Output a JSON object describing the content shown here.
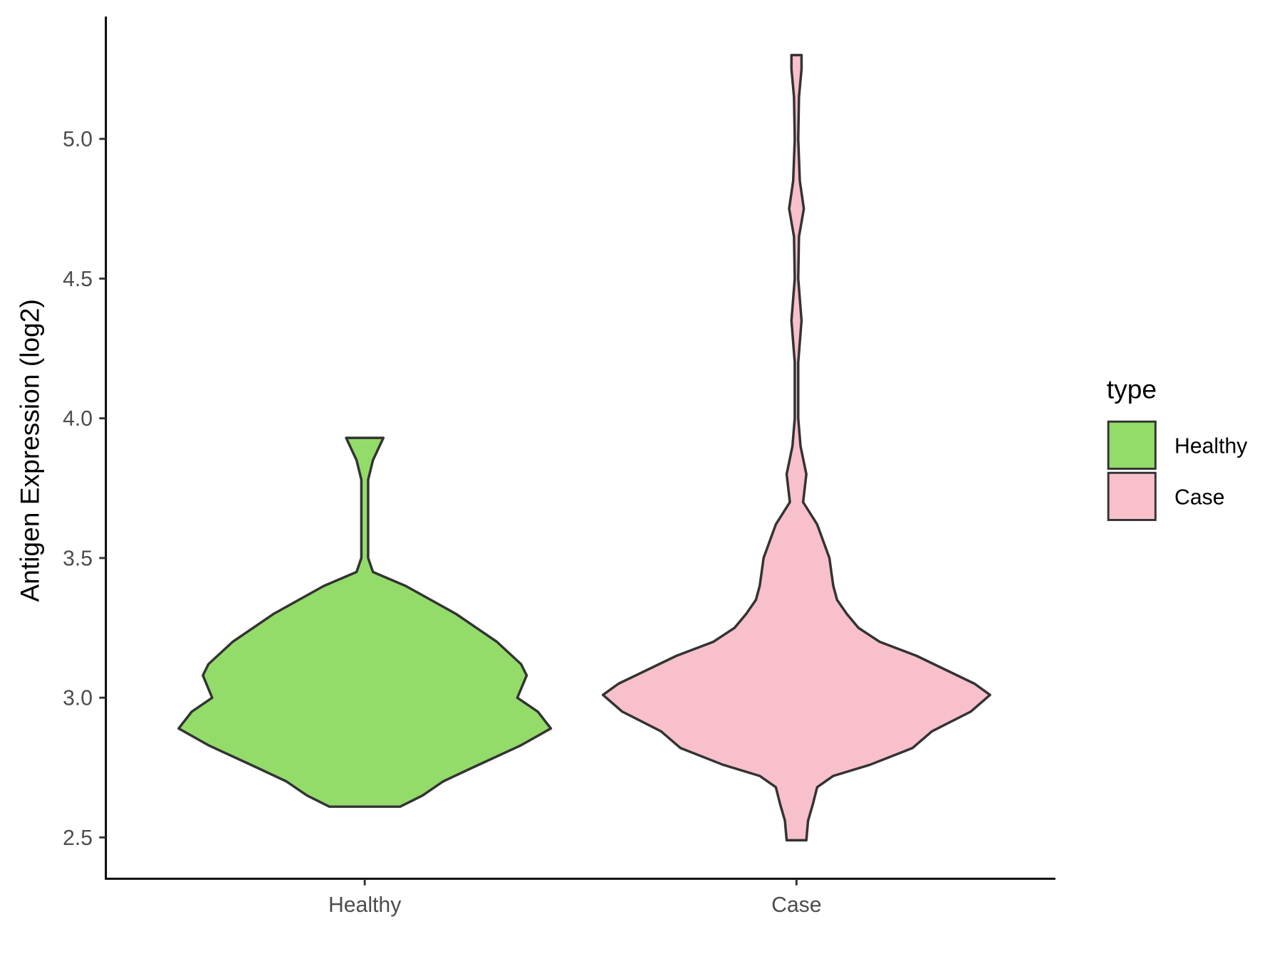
{
  "chart_data": {
    "type": "violin",
    "title": "",
    "xlabel": "",
    "ylabel": "Antigen Expression (log2)",
    "ylim": [
      2.35,
      5.45
    ],
    "yticks": [
      2.5,
      3.0,
      3.5,
      4.0,
      4.5,
      5.0
    ],
    "ytick_labels": [
      "2.5",
      "3.0",
      "3.5",
      "4.0",
      "4.5",
      "5.0"
    ],
    "categories": [
      "Healthy",
      "Case"
    ],
    "grid": false,
    "legend": {
      "title": "type",
      "position": "right",
      "entries": [
        "Healthy",
        "Case"
      ]
    },
    "series": [
      {
        "name": "Healthy",
        "color": "#93DC6A",
        "range": [
          2.61,
          3.93
        ],
        "density_profile": [
          [
            2.61,
            0.19
          ],
          [
            2.65,
            0.31
          ],
          [
            2.7,
            0.42
          ],
          [
            2.75,
            0.58
          ],
          [
            2.83,
            0.84
          ],
          [
            2.89,
            1.0
          ],
          [
            2.95,
            0.93
          ],
          [
            3.0,
            0.82
          ],
          [
            3.08,
            0.87
          ],
          [
            3.12,
            0.84
          ],
          [
            3.2,
            0.71
          ],
          [
            3.3,
            0.49
          ],
          [
            3.4,
            0.22
          ],
          [
            3.45,
            0.044
          ],
          [
            3.5,
            0.018
          ],
          [
            3.78,
            0.018
          ],
          [
            3.85,
            0.044
          ],
          [
            3.93,
            0.1
          ]
        ]
      },
      {
        "name": "Case",
        "color": "#F8C0CB",
        "range": [
          2.49,
          5.3
        ],
        "density_profile": [
          [
            2.49,
            0.051
          ],
          [
            2.56,
            0.06
          ],
          [
            2.62,
            0.085
          ],
          [
            2.68,
            0.107
          ],
          [
            2.72,
            0.19
          ],
          [
            2.76,
            0.38
          ],
          [
            2.82,
            0.6
          ],
          [
            2.88,
            0.7
          ],
          [
            2.95,
            0.9
          ],
          [
            3.01,
            1.0
          ],
          [
            3.05,
            0.92
          ],
          [
            3.1,
            0.77
          ],
          [
            3.15,
            0.62
          ],
          [
            3.2,
            0.43
          ],
          [
            3.25,
            0.32
          ],
          [
            3.3,
            0.26
          ],
          [
            3.35,
            0.21
          ],
          [
            3.4,
            0.19
          ],
          [
            3.45,
            0.18
          ],
          [
            3.5,
            0.17
          ],
          [
            3.62,
            0.107
          ],
          [
            3.7,
            0.034
          ],
          [
            3.8,
            0.051
          ],
          [
            3.9,
            0.021
          ],
          [
            4.0,
            0.009
          ],
          [
            4.2,
            0.009
          ],
          [
            4.35,
            0.026
          ],
          [
            4.5,
            0.009
          ],
          [
            4.65,
            0.013
          ],
          [
            4.75,
            0.038
          ],
          [
            4.85,
            0.017
          ],
          [
            5.0,
            0.009
          ],
          [
            5.15,
            0.013
          ],
          [
            5.25,
            0.026
          ],
          [
            5.3,
            0.026
          ]
        ]
      }
    ]
  }
}
